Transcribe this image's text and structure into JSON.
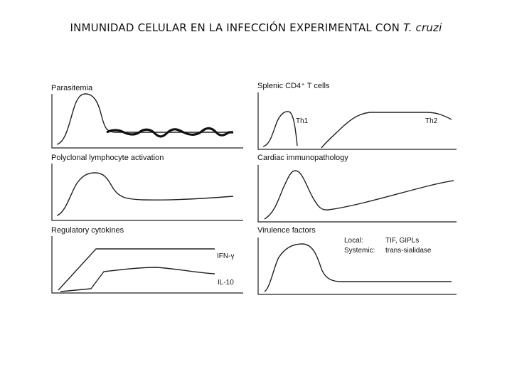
{
  "slide": {
    "title_main": "INMUNIDAD CELULAR EN LA INFECCIÓN EXPERIMENTAL CON ",
    "title_italic": "T. cruzi"
  },
  "panels": {
    "parasitemia": {
      "title": "Parasitemia"
    },
    "splenic": {
      "title": "Splenic CD4⁺ T cells",
      "th1": "Th1",
      "th2": "Th2"
    },
    "polyclonal": {
      "title": "Polyclonal lymphocyte activation"
    },
    "cardiac": {
      "title": "Cardiac immunopathology"
    },
    "cytokines": {
      "title": "Regulatory cytokines",
      "ifn": "IFN-γ",
      "il10": "IL-10"
    },
    "virulence": {
      "title": "Virulence factors",
      "local_key": "Local:",
      "local_val": "TIF, GIPLs",
      "systemic_key": "Systemic:",
      "systemic_val": "trans-sialidase"
    }
  }
}
